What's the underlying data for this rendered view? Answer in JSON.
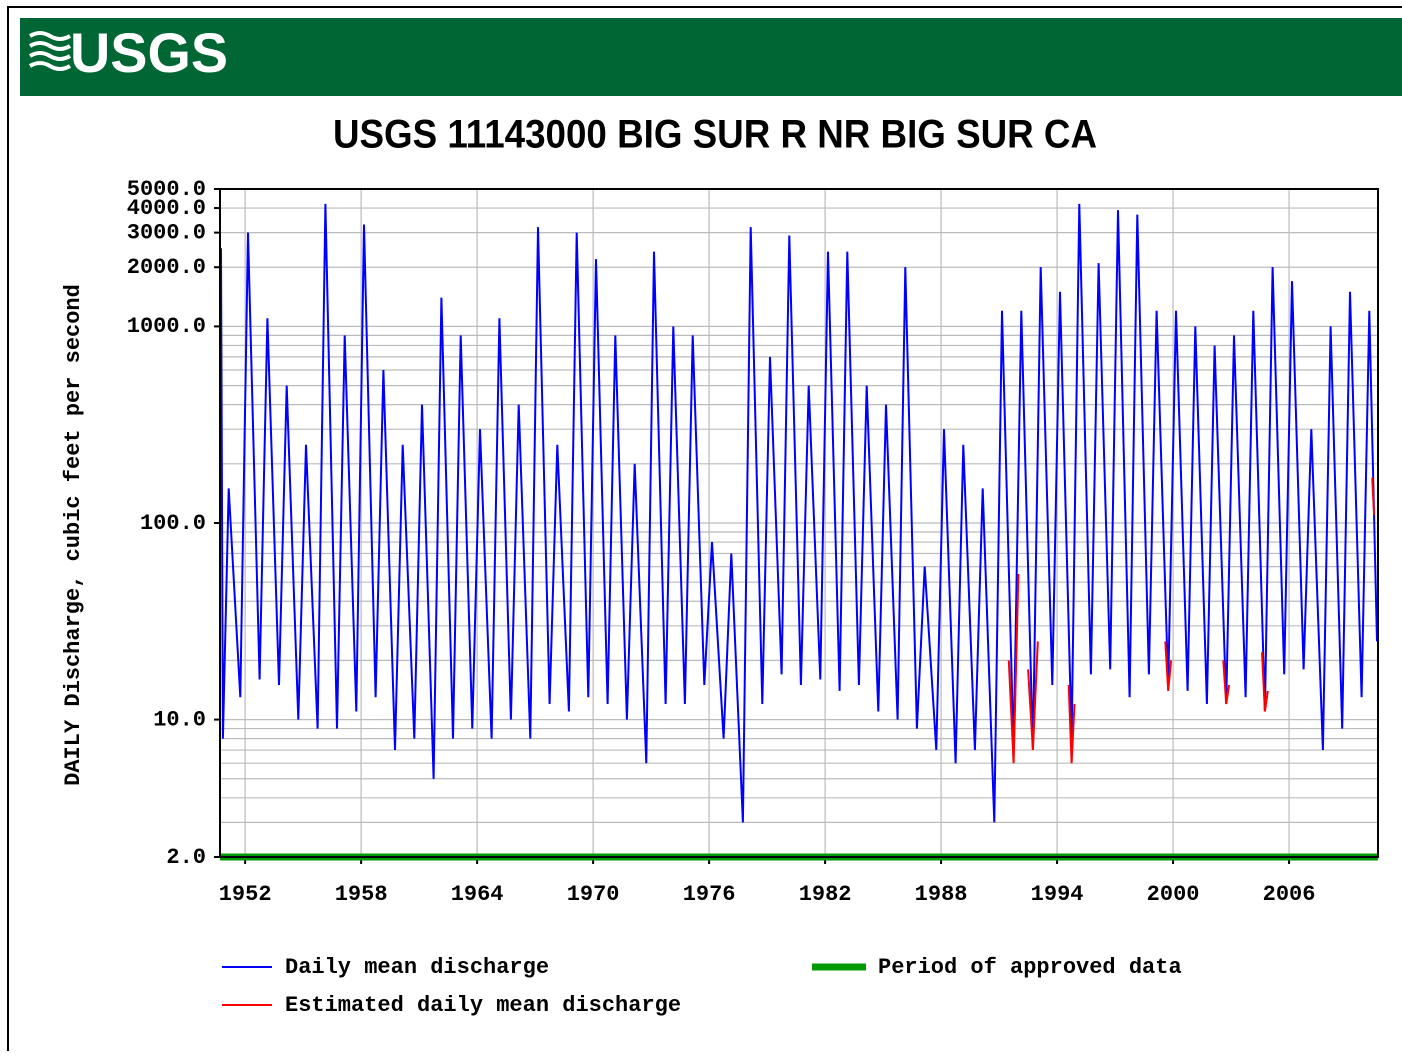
{
  "logo": "USGS",
  "chart_data": {
    "type": "line",
    "title": "USGS 11143000 BIG SUR R NR BIG SUR CA",
    "ylabel": "DAILY Discharge, cubic feet per second",
    "log_y": true,
    "grid": true,
    "xlim": [
      1950.7,
      2010.6
    ],
    "xticks": [
      1952,
      1958,
      1964,
      1970,
      1976,
      1982,
      1988,
      1994,
      2000,
      2006
    ],
    "ylim": [
      2,
      5000
    ],
    "yticks": [
      {
        "value": 2,
        "label": "2.0"
      },
      {
        "value": 10,
        "label": "10.0"
      },
      {
        "value": 100,
        "label": "100.0"
      },
      {
        "value": 1000,
        "label": "1000.0"
      },
      {
        "value": 2000,
        "label": "2000.0"
      },
      {
        "value": 3000,
        "label": "3000.0"
      },
      {
        "value": 4000,
        "label": "4000.0"
      },
      {
        "value": 5000,
        "label": "5000.0"
      }
    ],
    "y_minor_ticks": [
      3,
      4,
      5,
      6,
      7,
      8,
      9,
      20,
      30,
      40,
      50,
      60,
      70,
      80,
      90,
      200,
      300,
      400,
      500,
      600,
      700,
      800,
      900
    ],
    "series": [
      {
        "name": "Daily mean discharge",
        "color": "#0000ff",
        "x": [
          1950.75,
          1950.85,
          1951.15,
          1951.75,
          1952.15,
          1952.75,
          1953.15,
          1953.75,
          1954.15,
          1954.75,
          1955.15,
          1955.75,
          1956.15,
          1956.75,
          1957.15,
          1957.75,
          1958.15,
          1958.75,
          1959.15,
          1959.75,
          1960.15,
          1960.75,
          1961.15,
          1961.75,
          1962.15,
          1962.75,
          1963.15,
          1963.75,
          1964.15,
          1964.75,
          1965.15,
          1965.75,
          1966.15,
          1966.75,
          1967.15,
          1967.75,
          1968.15,
          1968.75,
          1969.15,
          1969.75,
          1970.15,
          1970.75,
          1971.15,
          1971.75,
          1972.15,
          1972.75,
          1973.15,
          1973.75,
          1974.15,
          1974.75,
          1975.15,
          1975.75,
          1976.15,
          1976.75,
          1977.15,
          1977.75,
          1978.15,
          1978.75,
          1979.15,
          1979.75,
          1980.15,
          1980.75,
          1981.15,
          1981.75,
          1982.15,
          1982.75,
          1983.15,
          1983.75,
          1984.15,
          1984.75,
          1985.15,
          1985.75,
          1986.15,
          1986.75,
          1987.15,
          1987.75,
          1988.15,
          1988.75,
          1989.15,
          1989.75,
          1990.15,
          1990.75,
          1991.15,
          1991.75,
          1992.15,
          1992.75,
          1993.15,
          1993.75,
          1994.15,
          1994.75,
          1995.15,
          1995.75,
          1996.15,
          1996.75,
          1997.15,
          1997.75,
          1998.15,
          1998.75,
          1999.15,
          1999.75,
          2000.15,
          2000.75,
          2001.15,
          2001.75,
          2002.15,
          2002.75,
          2003.15,
          2003.75,
          2004.15,
          2004.75,
          2005.15,
          2005.75,
          2006.15,
          2006.75,
          2007.15,
          2007.75,
          2008.15,
          2008.75,
          2009.15,
          2009.75,
          2010.15,
          2010.55
        ],
        "values": [
          2500,
          8,
          150,
          13,
          3000,
          16,
          1100,
          15,
          500,
          10,
          250,
          9,
          4200,
          9,
          900,
          11,
          3300,
          13,
          600,
          7,
          250,
          8,
          400,
          5,
          1400,
          8,
          900,
          9,
          300,
          8,
          1100,
          10,
          400,
          8,
          3200,
          12,
          250,
          11,
          3000,
          13,
          2200,
          12,
          900,
          10,
          200,
          6,
          2400,
          12,
          1000,
          12,
          900,
          15,
          80,
          8,
          70,
          3,
          3200,
          12,
          700,
          17,
          2900,
          15,
          500,
          16,
          2400,
          14,
          2400,
          15,
          500,
          11,
          400,
          10,
          2000,
          9,
          60,
          7,
          300,
          6,
          250,
          7,
          150,
          3,
          1200,
          7,
          1200,
          7,
          2000,
          15,
          1500,
          8,
          4200,
          17,
          2100,
          18,
          3900,
          13,
          3700,
          17,
          1200,
          15,
          1200,
          14,
          1000,
          12,
          800,
          12,
          900,
          13,
          1200,
          11,
          2000,
          17,
          1700,
          18,
          300,
          7,
          1000,
          9,
          1500,
          13,
          1200,
          25
        ]
      },
      {
        "name": "Estimated daily mean discharge",
        "color": "#ff0000",
        "x": [
          1991.5,
          1991.75,
          1992.0,
          1992.2,
          1992.5,
          1992.75,
          1993.0,
          1993.5,
          1994.6,
          1994.75,
          1994.9,
          1995.5,
          1999.6,
          1999.75,
          1999.9,
          2002.0,
          2002.6,
          2002.75,
          2002.9,
          2003.5,
          2004.6,
          2004.75,
          2004.9,
          2010.0,
          2010.3,
          2010.4
        ],
        "values": [
          20,
          6,
          55,
          null,
          18,
          7,
          25,
          null,
          15,
          6,
          12,
          null,
          25,
          14,
          20,
          null,
          20,
          12,
          15,
          null,
          22,
          11,
          14,
          null,
          170,
          110
        ]
      },
      {
        "name": "Period of approved data",
        "color": "#009900",
        "start": 1950.7,
        "end": 2010.6
      }
    ]
  }
}
